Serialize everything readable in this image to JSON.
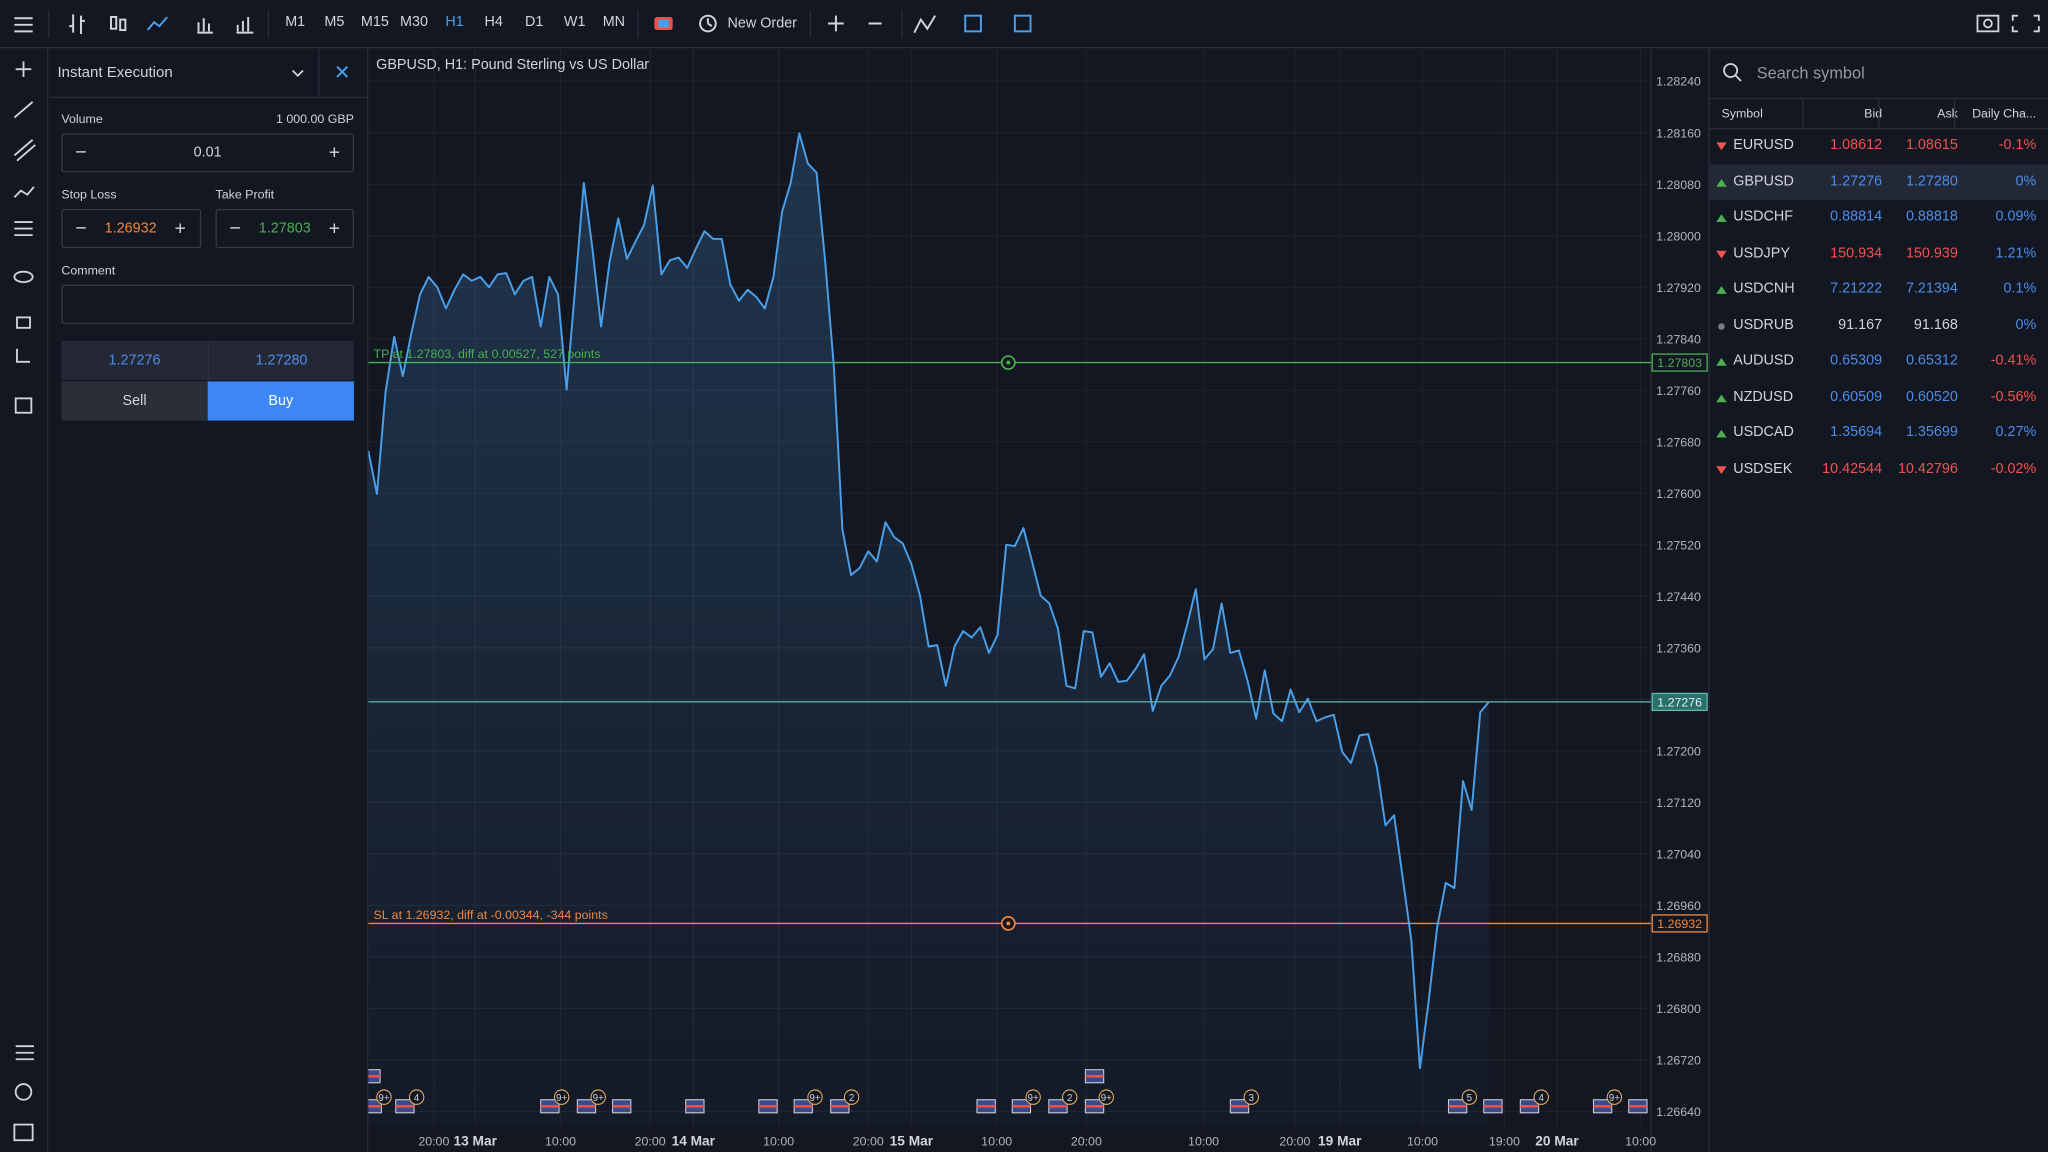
{
  "toolbar": {
    "timeframes": [
      "M1",
      "M5",
      "M15",
      "M30",
      "H1",
      "H4",
      "D1",
      "W1",
      "MN"
    ],
    "active_timeframe": 4,
    "new_order": "New Order"
  },
  "order_panel": {
    "title": "Instant Execution",
    "volume_label": "Volume",
    "volume_amount": "1 000.00 GBP",
    "volume": "0.01",
    "stop_loss_label": "Stop Loss",
    "stop_loss": "1.26932",
    "take_profit_label": "Take Profit",
    "take_profit": "1.27803",
    "comment_label": "Comment",
    "sell_price": "1.27276",
    "buy_price": "1.27280",
    "sell": "Sell",
    "buy": "Buy"
  },
  "chart": {
    "type": "line",
    "title": "GBPUSD, H1: Pound Sterling vs US Dollar",
    "line_color": "#4a9fe8",
    "values": [
      1.27666,
      1.27599,
      1.27757,
      1.27843,
      1.27782,
      1.27849,
      1.27909,
      1.27936,
      1.2792,
      1.27887,
      1.27916,
      1.2794,
      1.2793,
      1.27936,
      1.2792,
      1.2794,
      1.27942,
      1.27909,
      1.2793,
      1.27936,
      1.27859,
      1.27936,
      1.27909,
      1.27761,
      1.2792,
      1.28082,
      1.2798,
      1.27859,
      1.2796,
      1.28027,
      1.27964,
      1.27991,
      1.28017,
      1.28078,
      1.2794,
      1.27962,
      1.27966,
      1.2795,
      1.2798,
      1.28007,
      1.27995,
      1.27995,
      1.27924,
      1.27899,
      1.27916,
      1.27905,
      1.27887,
      1.27936,
      1.28037,
      1.28082,
      1.28159,
      1.28112,
      1.28098,
      1.2796,
      1.27798,
      1.27544,
      1.27473,
      1.27484,
      1.2751,
      1.27494,
      1.27555,
      1.27532,
      1.27522,
      1.2749,
      1.27441,
      1.27362,
      1.27364,
      1.27301,
      1.27362,
      1.27386,
      1.27376,
      1.27392,
      1.27352,
      1.2738,
      1.2752,
      1.27518,
      1.27546,
      1.27494,
      1.27441,
      1.27429,
      1.2739,
      1.27301,
      1.27297,
      1.27386,
      1.27384,
      1.27315,
      1.27336,
      1.27307,
      1.27309,
      1.27327,
      1.2735,
      1.27262,
      1.27301,
      1.27317,
      1.27346,
      1.27396,
      1.27451,
      1.27342,
      1.27358,
      1.27429,
      1.27352,
      1.27356,
      1.27309,
      1.2725,
      1.27325,
      1.27258,
      1.27246,
      1.27295,
      1.2726,
      1.27281,
      1.27246,
      1.27252,
      1.27256,
      1.27198,
      1.27181,
      1.27224,
      1.27226,
      1.27175,
      1.27084,
      1.271,
      1.27003,
      1.26906,
      1.26707,
      1.2681,
      1.26926,
      1.26995,
      1.26987,
      1.27153,
      1.27108,
      1.2726,
      1.27276
    ],
    "xlim": [
      0,
      148.8
    ],
    "xticks": [
      {
        "value": 7.6,
        "label": "20:00"
      },
      {
        "value": 12.4,
        "label": "13 Mar"
      },
      {
        "value": 22.3,
        "label": "10:00"
      },
      {
        "value": 32.7,
        "label": "20:00"
      },
      {
        "value": 37.7,
        "label": "14 Mar"
      },
      {
        "value": 47.6,
        "label": "10:00"
      },
      {
        "value": 58.0,
        "label": "20:00"
      },
      {
        "value": 63.0,
        "label": "15 Mar"
      },
      {
        "value": 72.9,
        "label": "10:00"
      },
      {
        "value": 83.3,
        "label": "20:00"
      },
      {
        "value": 96.9,
        "label": "10:00"
      },
      {
        "value": 107.5,
        "label": "20:00"
      },
      {
        "value": 112.7,
        "label": "19 Mar"
      },
      {
        "value": 122.3,
        "label": "10:00"
      },
      {
        "value": 131.8,
        "label": "19:00"
      },
      {
        "value": 137.9,
        "label": "20 Mar"
      },
      {
        "value": 147.6,
        "label": "10:00"
      }
    ],
    "ylim": [
      1.26577,
      1.28289
    ],
    "yticks": [
      {
        "value": 1.2824,
        "label": "1.28240"
      },
      {
        "value": 1.2816,
        "label": "1.28160"
      },
      {
        "value": 1.2808,
        "label": "1.28080"
      },
      {
        "value": 1.28,
        "label": "1.28000"
      },
      {
        "value": 1.2792,
        "label": "1.27920"
      },
      {
        "value": 1.2784,
        "label": "1.27840"
      },
      {
        "value": 1.2776,
        "label": "1.27760"
      },
      {
        "value": 1.2768,
        "label": "1.27680"
      },
      {
        "value": 1.276,
        "label": "1.27600"
      },
      {
        "value": 1.2752,
        "label": "1.27520"
      },
      {
        "value": 1.2744,
        "label": "1.27440"
      },
      {
        "value": 1.2736,
        "label": "1.27360"
      },
      {
        "value": 1.2728,
        "label": "1.27280"
      },
      {
        "value": 1.272,
        "label": "1.27200"
      },
      {
        "value": 1.2712,
        "label": "1.27120"
      },
      {
        "value": 1.2704,
        "label": "1.27040"
      },
      {
        "value": 1.2696,
        "label": "1.26960"
      },
      {
        "value": 1.2688,
        "label": "1.26880"
      },
      {
        "value": 1.268,
        "label": "1.26800"
      },
      {
        "value": 1.2672,
        "label": "1.26720"
      },
      {
        "value": 1.2664,
        "label": "1.26640"
      }
    ],
    "grid": true,
    "take_profit": {
      "value": 1.27803,
      "text": "TP at 1.27803, diff at 0.00527, 527 points",
      "color": "#4caf50"
    },
    "stop_loss": {
      "value": 1.26932,
      "text": "SL at 1.26932, diff at -0.00344, -344 points",
      "color": "#f0883e"
    },
    "bid": {
      "value": 1.27276,
      "color": "#5fb8b0"
    },
    "event_badges": [
      "9+",
      "4",
      "9+",
      "9+",
      "9+",
      "2",
      "9+",
      "2",
      "9+",
      "3",
      "5",
      "4",
      "9+"
    ]
  },
  "watchlist": {
    "search_placeholder": "Search symbol",
    "columns": [
      "Symbol",
      "Bid",
      "Ask",
      "Daily Cha..."
    ],
    "selected_row": 1,
    "rows": [
      {
        "symbol": "EURUSD",
        "bid": "1.08612",
        "ask": "1.08615",
        "change": "-0.1%",
        "trend": "down"
      },
      {
        "symbol": "GBPUSD",
        "bid": "1.27276",
        "ask": "1.27280",
        "change": "0%",
        "trend": "up"
      },
      {
        "symbol": "USDCHF",
        "bid": "0.88814",
        "ask": "0.88818",
        "change": "0.09%",
        "trend": "up"
      },
      {
        "symbol": "USDJPY",
        "bid": "150.934",
        "ask": "150.939",
        "change": "1.21%",
        "trend": "down"
      },
      {
        "symbol": "USDCNH",
        "bid": "7.21222",
        "ask": "7.21394",
        "change": "0.1%",
        "trend": "up"
      },
      {
        "symbol": "USDRUB",
        "bid": "91.167",
        "ask": "91.168",
        "change": "0%",
        "trend": "flat"
      },
      {
        "symbol": "AUDUSD",
        "bid": "0.65309",
        "ask": "0.65312",
        "change": "-0.41%",
        "trend": "up"
      },
      {
        "symbol": "NZDUSD",
        "bid": "0.60509",
        "ask": "0.60520",
        "change": "-0.56%",
        "trend": "up"
      },
      {
        "symbol": "USDCAD",
        "bid": "1.35694",
        "ask": "1.35699",
        "change": "0.27%",
        "trend": "up"
      },
      {
        "symbol": "USDSEK",
        "bid": "10.42544",
        "ask": "10.42796",
        "change": "-0.02%",
        "trend": "down"
      }
    ]
  }
}
